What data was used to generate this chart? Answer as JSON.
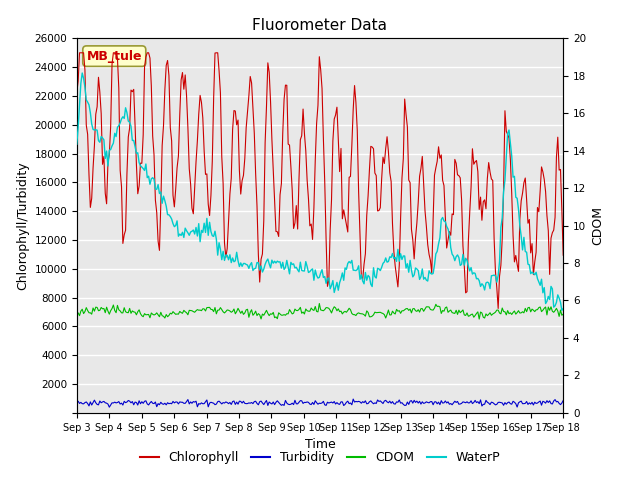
{
  "title": "Fluorometer Data",
  "xlabel": "Time",
  "ylabel_left": "Chlorophyll/Turbidity",
  "ylabel_right": "CDOM",
  "ylim_left": [
    0,
    26000
  ],
  "ylim_right": [
    0,
    20
  ],
  "yticks_left": [
    0,
    2000,
    4000,
    6000,
    8000,
    10000,
    12000,
    14000,
    16000,
    18000,
    20000,
    22000,
    24000,
    26000
  ],
  "yticks_right": [
    0,
    2,
    4,
    6,
    8,
    10,
    12,
    14,
    16,
    18,
    20
  ],
  "xtick_labels": [
    "Sep 3",
    "Sep 4",
    "Sep 5",
    "Sep 6",
    "Sep 7",
    "Sep 8",
    "Sep 9",
    "Sep 10",
    "Sep 11",
    "Sep 12",
    "Sep 13",
    "Sep 14",
    "Sep 15",
    "Sep 16",
    "Sep 17",
    "Sep 18"
  ],
  "annotation_text": "MB_tule",
  "colors": {
    "chlorophyll": "#cc0000",
    "turbidity": "#0000cc",
    "cdom": "#00bb00",
    "waterp": "#00cccc",
    "background": "#e8e8e8",
    "annotation_bg": "#ffffcc",
    "annotation_border": "#999933",
    "annotation_text": "#cc0000"
  },
  "legend_entries": [
    "Chlorophyll",
    "Turbidity",
    "CDOM",
    "WaterP"
  ]
}
